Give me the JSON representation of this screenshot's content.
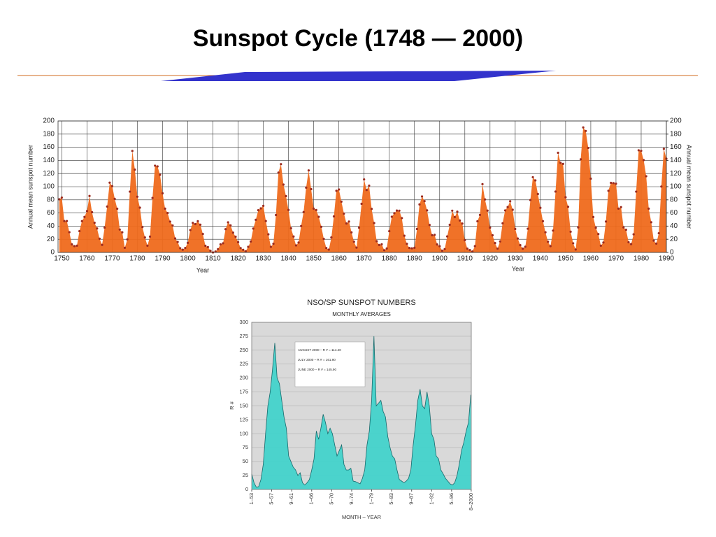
{
  "title": "Sunspot Cycle (1748 — 2000)",
  "chart_data": [
    {
      "type": "area",
      "markers": true,
      "color": "#ef6a1c",
      "marker_color": "#9b2b1f",
      "grid": true,
      "x_label": "Year",
      "y_label": "Annual mean sunspot number",
      "y2_label": "Annual mean sunspot number",
      "xlim": [
        1748.5,
        1990
      ],
      "xticks": [
        1750,
        1760,
        1770,
        1780,
        1790,
        1800,
        1810,
        1820,
        1830,
        1840,
        1850,
        1860,
        1870,
        1880,
        1890,
        1900,
        1910,
        1920,
        1930,
        1940,
        1950,
        1960,
        1970,
        1980,
        1990
      ],
      "ylim": [
        0,
        200
      ],
      "yticks": [
        0,
        20,
        40,
        60,
        80,
        100,
        120,
        140,
        160,
        180,
        200
      ],
      "y2lim": [
        0,
        200
      ],
      "y2ticks": [
        0,
        20,
        40,
        60,
        80,
        100,
        120,
        140,
        160,
        180,
        200
      ],
      "x": [
        1749,
        1750,
        1751,
        1752,
        1753,
        1754,
        1755,
        1756,
        1757,
        1758,
        1759,
        1760,
        1761,
        1762,
        1763,
        1764,
        1765,
        1766,
        1767,
        1768,
        1769,
        1770,
        1771,
        1772,
        1773,
        1774,
        1775,
        1776,
        1777,
        1778,
        1779,
        1780,
        1781,
        1782,
        1783,
        1784,
        1785,
        1786,
        1787,
        1788,
        1789,
        1790,
        1791,
        1792,
        1793,
        1794,
        1795,
        1796,
        1797,
        1798,
        1799,
        1800,
        1801,
        1802,
        1803,
        1804,
        1805,
        1806,
        1807,
        1808,
        1809,
        1810,
        1811,
        1812,
        1813,
        1814,
        1815,
        1816,
        1817,
        1818,
        1819,
        1820,
        1821,
        1822,
        1823,
        1824,
        1825,
        1826,
        1827,
        1828,
        1829,
        1830,
        1831,
        1832,
        1833,
        1834,
        1835,
        1836,
        1837,
        1838,
        1839,
        1840,
        1841,
        1842,
        1843,
        1844,
        1845,
        1846,
        1847,
        1848,
        1849,
        1850,
        1851,
        1852,
        1853,
        1854,
        1855,
        1856,
        1857,
        1858,
        1859,
        1860,
        1861,
        1862,
        1863,
        1864,
        1865,
        1866,
        1867,
        1868,
        1869,
        1870,
        1871,
        1872,
        1873,
        1874,
        1875,
        1876,
        1877,
        1878,
        1879,
        1880,
        1881,
        1882,
        1883,
        1884,
        1885,
        1886,
        1887,
        1888,
        1889,
        1890,
        1891,
        1892,
        1893,
        1894,
        1895,
        1896,
        1897,
        1898,
        1899,
        1900,
        1901,
        1902,
        1903,
        1904,
        1905,
        1906,
        1907,
        1908,
        1909,
        1910,
        1911,
        1912,
        1913,
        1914,
        1915,
        1916,
        1917,
        1918,
        1919,
        1920,
        1921,
        1922,
        1923,
        1924,
        1925,
        1926,
        1927,
        1928,
        1929,
        1930,
        1931,
        1932,
        1933,
        1934,
        1935,
        1936,
        1937,
        1938,
        1939,
        1940,
        1941,
        1942,
        1943,
        1944,
        1945,
        1946,
        1947,
        1948,
        1949,
        1950,
        1951,
        1952,
        1953,
        1954,
        1955,
        1956,
        1957,
        1958,
        1959,
        1960,
        1961,
        1962,
        1963,
        1964,
        1965,
        1966,
        1967,
        1968,
        1969,
        1970,
        1971,
        1972,
        1973,
        1974,
        1975,
        1976,
        1977,
        1978,
        1979,
        1980,
        1981,
        1982,
        1983,
        1984,
        1985,
        1986,
        1987,
        1988,
        1989,
        1990
      ],
      "values": [
        80.9,
        83.4,
        47.7,
        47.8,
        30.7,
        12.2,
        9.6,
        10.2,
        32.4,
        47.6,
        54.0,
        62.9,
        85.9,
        61.2,
        45.1,
        36.4,
        20.9,
        11.4,
        37.8,
        69.8,
        106.1,
        100.8,
        81.6,
        66.5,
        34.8,
        30.6,
        7.0,
        19.8,
        92.5,
        154.4,
        125.9,
        84.8,
        68.1,
        38.5,
        22.8,
        10.2,
        24.1,
        82.9,
        132.0,
        130.9,
        118.1,
        89.9,
        66.6,
        60.0,
        46.9,
        41.0,
        21.3,
        16.0,
        6.4,
        4.1,
        6.8,
        14.5,
        34.0,
        45.0,
        43.1,
        47.5,
        42.2,
        28.1,
        10.1,
        8.1,
        2.5,
        0.0,
        1.4,
        5.0,
        12.2,
        13.9,
        35.4,
        45.8,
        41.1,
        30.1,
        23.9,
        15.6,
        6.6,
        4.0,
        1.8,
        8.5,
        16.6,
        36.3,
        49.6,
        64.2,
        67.0,
        70.9,
        47.8,
        27.5,
        8.5,
        13.2,
        56.9,
        121.5,
        134.3,
        103.2,
        85.7,
        64.6,
        36.7,
        24.2,
        10.7,
        15.0,
        40.1,
        61.5,
        98.5,
        124.7,
        96.3,
        66.6,
        64.5,
        54.1,
        39.0,
        20.6,
        6.7,
        4.3,
        22.7,
        54.8,
        93.8,
        95.8,
        77.2,
        59.1,
        44.0,
        47.0,
        30.5,
        16.3,
        7.3,
        37.6,
        74.0,
        111.0,
        95.0,
        101.6,
        66.2,
        44.7,
        17.0,
        11.3,
        12.4,
        3.4,
        6.0,
        32.3,
        54.3,
        59.7,
        63.7,
        63.5,
        52.2,
        25.4,
        13.1,
        6.8,
        6.3,
        7.1,
        35.6,
        73.0,
        85.1,
        78.0,
        64.0,
        41.8,
        26.2,
        26.7,
        12.1,
        9.5,
        2.7,
        5.0,
        24.4,
        42.0,
        63.5,
        53.8,
        62.0,
        48.5,
        43.9,
        18.6,
        5.7,
        3.6,
        1.4,
        9.6,
        47.4,
        57.1,
        103.9,
        80.6,
        63.6,
        37.6,
        26.1,
        14.2,
        5.8,
        16.7,
        44.3,
        63.9,
        69.0,
        77.8,
        64.9,
        35.7,
        21.2,
        11.1,
        5.7,
        8.7,
        36.1,
        79.7,
        114.4,
        109.6,
        88.8,
        67.8,
        47.5,
        30.6,
        16.3,
        9.6,
        33.2,
        92.6,
        151.6,
        136.3,
        134.7,
        83.9,
        69.4,
        31.5,
        13.9,
        4.4,
        38.0,
        141.7,
        190.2,
        184.8,
        159.0,
        112.3,
        53.9,
        37.5,
        27.9,
        10.2,
        15.1,
        47.0,
        93.8,
        105.9,
        105.5,
        104.5,
        66.6,
        68.9,
        38.0,
        34.5,
        15.5,
        12.6,
        27.5,
        92.5,
        155.4,
        154.6,
        140.4,
        115.9,
        66.6,
        45.9,
        17.9,
        13.4,
        29.2,
        100.2,
        157.6,
        142.6
      ]
    },
    {
      "type": "area",
      "line_color": "#17696b",
      "color": "#43d3cb",
      "background": "#d9d9d9",
      "grid": true,
      "title": "NSO/SP SUNSPOT NUMBERS",
      "subtitle": "MONTHLY AVERAGES",
      "x_label": "MONTH – YEAR",
      "y_label": "R #",
      "annotations": [
        "AUGUST 2000 – R # = 114.40",
        "JULY 2000 – R # = 161.90",
        "JUNE 2000 – R # = 145.90"
      ],
      "xlim": [
        1953,
        2000.6
      ],
      "xticks": [
        {
          "value": 1953.0,
          "label": "1–53"
        },
        {
          "value": 1957.33,
          "label": "5–57"
        },
        {
          "value": 1961.67,
          "label": "9–61"
        },
        {
          "value": 1966.0,
          "label": "1–66"
        },
        {
          "value": 1970.33,
          "label": "5–70"
        },
        {
          "value": 1974.67,
          "label": "9–74"
        },
        {
          "value": 1979.0,
          "label": "1–79"
        },
        {
          "value": 1983.33,
          "label": "5–83"
        },
        {
          "value": 1987.67,
          "label": "9–87"
        },
        {
          "value": 1992.0,
          "label": "1–92"
        },
        {
          "value": 1996.33,
          "label": "5–96"
        },
        {
          "value": 2000.58,
          "label": "8–2000"
        }
      ],
      "ylim": [
        0,
        300
      ],
      "yticks": [
        0,
        25,
        50,
        75,
        100,
        125,
        150,
        175,
        200,
        225,
        250,
        275,
        300
      ],
      "x": [
        1953.0,
        1953.5,
        1954.0,
        1954.5,
        1955.0,
        1955.5,
        1956.0,
        1956.5,
        1957.0,
        1957.5,
        1958.0,
        1958.5,
        1959.0,
        1959.5,
        1960.0,
        1960.5,
        1961.0,
        1961.5,
        1962.0,
        1962.5,
        1963.0,
        1963.5,
        1964.0,
        1964.5,
        1965.0,
        1965.5,
        1966.0,
        1966.5,
        1967.0,
        1967.5,
        1968.0,
        1968.5,
        1969.0,
        1969.5,
        1970.0,
        1970.5,
        1971.0,
        1971.5,
        1972.0,
        1972.5,
        1973.0,
        1973.5,
        1974.0,
        1974.5,
        1975.0,
        1975.5,
        1976.0,
        1976.5,
        1977.0,
        1977.5,
        1978.0,
        1978.5,
        1979.0,
        1979.5,
        1980.0,
        1980.5,
        1981.0,
        1981.5,
        1982.0,
        1982.5,
        1983.0,
        1983.5,
        1984.0,
        1984.5,
        1985.0,
        1985.5,
        1986.0,
        1986.5,
        1987.0,
        1987.5,
        1988.0,
        1988.5,
        1989.0,
        1989.5,
        1990.0,
        1990.5,
        1991.0,
        1991.5,
        1992.0,
        1992.5,
        1993.0,
        1993.5,
        1994.0,
        1994.5,
        1995.0,
        1995.5,
        1996.0,
        1996.5,
        1997.0,
        1997.5,
        1998.0,
        1998.5,
        1999.0,
        1999.5,
        2000.0,
        2000.5
      ],
      "values": [
        28,
        12,
        4,
        5,
        18,
        45,
        100,
        150,
        175,
        215,
        263,
        200,
        190,
        160,
        130,
        110,
        60,
        50,
        40,
        35,
        25,
        30,
        12,
        8,
        12,
        18,
        35,
        55,
        105,
        90,
        110,
        135,
        120,
        100,
        110,
        100,
        80,
        60,
        70,
        80,
        45,
        35,
        35,
        38,
        15,
        14,
        12,
        10,
        20,
        35,
        80,
        105,
        160,
        275,
        150,
        155,
        160,
        140,
        130,
        95,
        75,
        60,
        55,
        35,
        18,
        15,
        12,
        15,
        20,
        35,
        80,
        115,
        160,
        180,
        150,
        145,
        175,
        150,
        100,
        90,
        60,
        55,
        35,
        28,
        20,
        15,
        10,
        8,
        12,
        25,
        45,
        70,
        85,
        105,
        120,
        170
      ]
    }
  ]
}
